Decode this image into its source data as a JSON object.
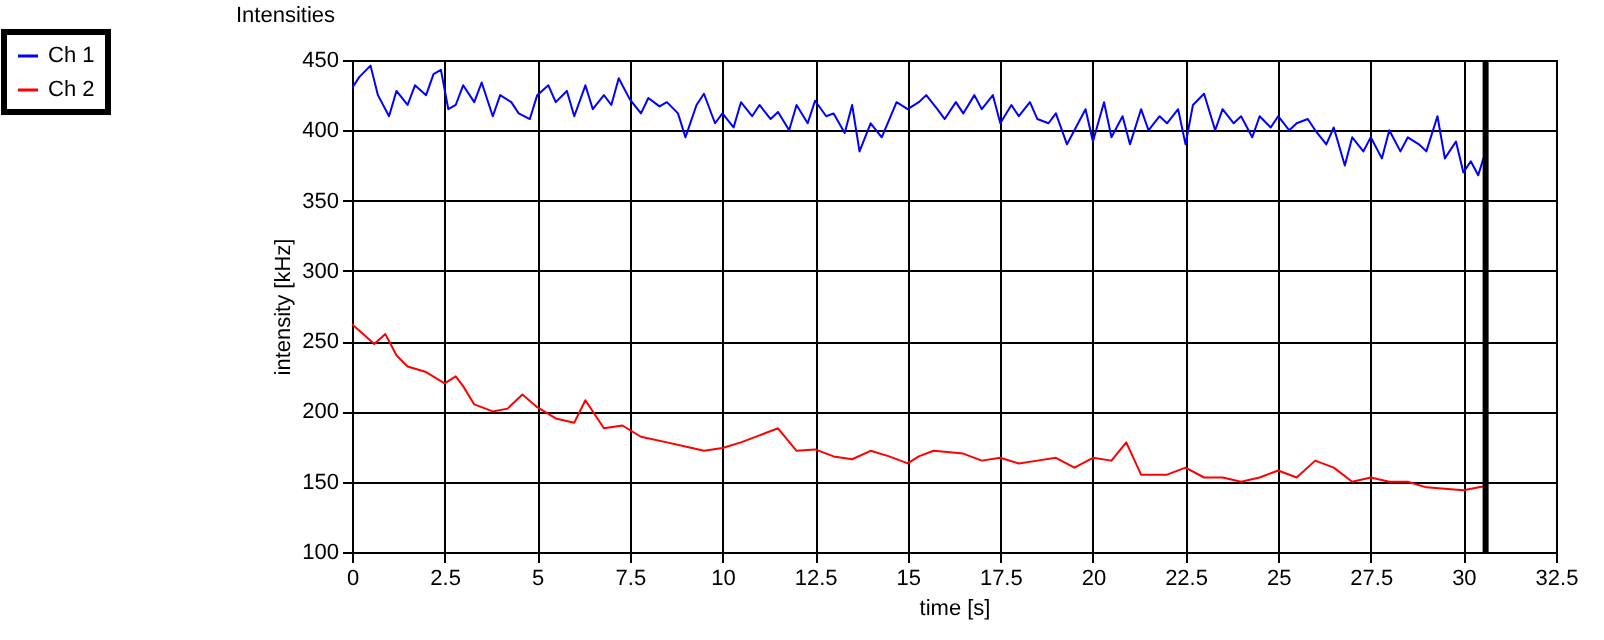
{
  "chart_data": {
    "type": "line",
    "title": "Intensities",
    "xlabel": "time [s]",
    "ylabel": "intensity [kHz]",
    "xlim": [
      0,
      32.5
    ],
    "xticks": [
      0,
      2.5,
      5,
      7.5,
      10,
      12.5,
      15,
      17.5,
      20,
      22.5,
      25,
      27.5,
      30,
      32.5
    ],
    "ylim": [
      100,
      450
    ],
    "yticks": [
      100,
      150,
      200,
      250,
      300,
      350,
      400,
      450
    ],
    "grid": true,
    "legend": "top left",
    "marker": "none",
    "line_style": "solid",
    "ref_lines": [
      {
        "axis": "x",
        "value": 30.6,
        "color": "#000000"
      }
    ],
    "series": [
      {
        "name": "Ch 1",
        "color": "#0000ff",
        "x": [
          0,
          0.2,
          0.5,
          0.7,
          1,
          1.2,
          1.5,
          1.7,
          2,
          2.2,
          2.4,
          2.6,
          2.8,
          3,
          3.3,
          3.5,
          3.8,
          4,
          4.3,
          4.5,
          4.8,
          5,
          5.3,
          5.5,
          5.8,
          6,
          6.3,
          6.5,
          6.8,
          7,
          7.2,
          7.5,
          7.8,
          8,
          8.3,
          8.5,
          8.8,
          9,
          9.3,
          9.5,
          9.8,
          10,
          10.3,
          10.5,
          10.8,
          11,
          11.3,
          11.5,
          11.8,
          12,
          12.3,
          12.5,
          12.8,
          13,
          13.3,
          13.5,
          13.7,
          14,
          14.3,
          14.7,
          15,
          15.3,
          15.5,
          15.8,
          16,
          16.3,
          16.5,
          16.8,
          17,
          17.3,
          17.5,
          17.8,
          18,
          18.3,
          18.5,
          18.8,
          19,
          19.3,
          19.5,
          19.8,
          20,
          20.3,
          20.5,
          20.8,
          21,
          21.3,
          21.5,
          21.8,
          22,
          22.3,
          22.5,
          22.7,
          23,
          23.3,
          23.5,
          23.8,
          24,
          24.3,
          24.5,
          24.8,
          25,
          25.3,
          25.5,
          25.8,
          26,
          26.3,
          26.5,
          26.8,
          27,
          27.3,
          27.5,
          27.8,
          28,
          28.3,
          28.5,
          28.8,
          29,
          29.3,
          29.5,
          29.8,
          30,
          30.2,
          30.4,
          30.6
        ],
        "values": [
          430,
          438,
          446,
          425,
          410,
          428,
          418,
          432,
          425,
          440,
          443,
          415,
          418,
          432,
          420,
          434,
          410,
          425,
          420,
          412,
          408,
          425,
          432,
          420,
          428,
          410,
          432,
          415,
          425,
          418,
          437,
          422,
          412,
          423,
          417,
          420,
          412,
          395,
          418,
          426,
          405,
          412,
          402,
          420,
          410,
          418,
          408,
          413,
          400,
          418,
          405,
          421,
          410,
          412,
          398,
          418,
          385,
          405,
          395,
          420,
          415,
          420,
          425,
          415,
          408,
          420,
          412,
          425,
          415,
          425,
          405,
          418,
          410,
          420,
          408,
          405,
          412,
          390,
          400,
          415,
          392,
          420,
          395,
          410,
          390,
          415,
          400,
          410,
          405,
          415,
          390,
          418,
          426,
          400,
          415,
          405,
          410,
          395,
          410,
          402,
          410,
          400,
          405,
          408,
          400,
          390,
          402,
          375,
          395,
          385,
          395,
          380,
          400,
          385,
          395,
          390,
          385,
          410,
          380,
          392,
          370,
          378,
          368,
          385
        ]
      },
      {
        "name": "Ch 2",
        "color": "#ff0000",
        "x": [
          0,
          0.3,
          0.6,
          0.9,
          1.2,
          1.5,
          2,
          2.5,
          2.8,
          3,
          3.3,
          3.8,
          4.2,
          4.6,
          5,
          5.5,
          6,
          6.3,
          6.8,
          7.3,
          7.8,
          8.5,
          9,
          9.5,
          10,
          10.5,
          11,
          11.5,
          12,
          12.5,
          13,
          13.5,
          14,
          14.5,
          15,
          15.3,
          15.7,
          16.5,
          17,
          17.5,
          18,
          18.5,
          19,
          19.5,
          20,
          20.5,
          20.9,
          21.3,
          22,
          22.5,
          23,
          23.5,
          24,
          24.5,
          25,
          25.5,
          26,
          26.5,
          27,
          27.5,
          28,
          28.5,
          29,
          29.5,
          30,
          30.6
        ],
        "values": [
          262,
          255,
          248,
          255,
          240,
          232,
          228,
          220,
          225,
          218,
          205,
          200,
          202,
          212,
          203,
          195,
          192,
          208,
          188,
          190,
          182,
          178,
          175,
          172,
          174,
          178,
          183,
          188,
          172,
          173,
          168,
          166,
          172,
          168,
          163,
          168,
          172,
          170,
          165,
          167,
          163,
          165,
          167,
          160,
          167,
          165,
          178,
          155,
          155,
          160,
          153,
          153,
          150,
          153,
          158,
          153,
          165,
          160,
          150,
          153,
          150,
          150,
          146,
          145,
          144,
          147
        ]
      }
    ]
  }
}
